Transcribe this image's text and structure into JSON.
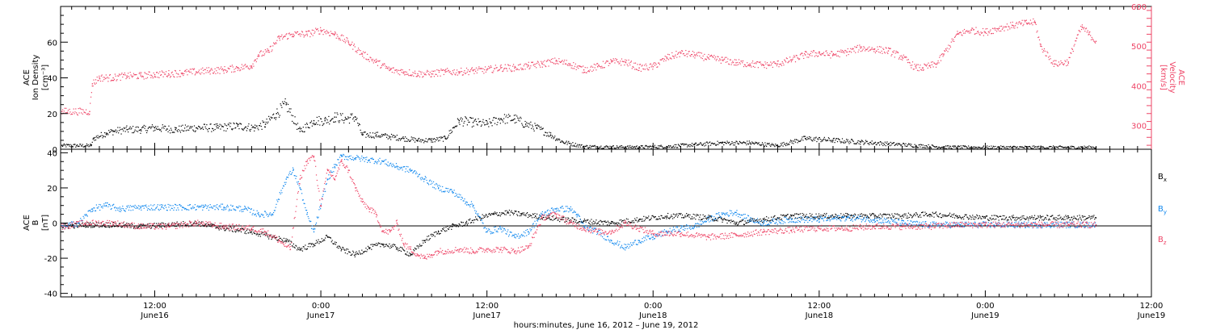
{
  "chart_data": [
    {
      "type": "scatter",
      "panel": "top",
      "y_left_label": [
        "ACE",
        "Ion Density",
        "[cm⁻³]"
      ],
      "y_right_label": [
        "ACE",
        "Velocity",
        "[km/s]"
      ],
      "x_tick_labels": [
        {
          "time": "12:00",
          "date": "June16"
        },
        {
          "time": "0:00",
          "date": "June17"
        },
        {
          "time": "12:00",
          "date": "June17"
        },
        {
          "time": "0:00",
          "date": "June18"
        },
        {
          "time": "12:00",
          "date": "June18"
        },
        {
          "time": "0:00",
          "date": "June19"
        },
        {
          "time": "12:00",
          "date": "June19"
        }
      ],
      "xlim_hours_since_june16_0000": [
        5.2,
        84.0
      ],
      "y_left_ticks": [
        "0",
        "20",
        "40",
        "60"
      ],
      "ylim_left": [
        0,
        80
      ],
      "y_right_ticks": [
        "300",
        "400",
        "500",
        "600"
      ],
      "ylim_right": [
        240,
        600
      ],
      "series": [
        {
          "name": "Ion Density",
          "axis": "left",
          "color": "#000000",
          "x": [
            5.3,
            7.4,
            7.6,
            8.5,
            9.0,
            10.0,
            11.0,
            12.0,
            13.5,
            15.0,
            16.5,
            18.0,
            19.2,
            20.0,
            20.8,
            21.5,
            22.5,
            23.5,
            24.3,
            25.0,
            25.8,
            26.5,
            27.0,
            28.0,
            29.0,
            30.0,
            31.0,
            32.0,
            33.0,
            34.0,
            35.0,
            36.0,
            37.0,
            38.0,
            38.8,
            39.6,
            40.6,
            41.5,
            43.0,
            45.0,
            47.0,
            49.0,
            51.0,
            53.0,
            55.0,
            57.0,
            59.0,
            61.0,
            63.0,
            65.0,
            67.0,
            69.0,
            71.0,
            73.0,
            75.0,
            77.0,
            79.0,
            80.0
          ],
          "y": [
            2,
            2,
            6,
            9,
            10,
            11,
            11,
            12,
            11,
            12,
            12,
            13,
            12,
            14,
            20,
            25,
            10,
            16,
            16,
            18,
            17,
            18,
            8,
            8,
            7,
            6,
            5,
            5,
            6,
            16,
            15,
            14,
            17,
            17,
            14,
            12,
            8,
            4,
            1.5,
            1.2,
            1.2,
            1.5,
            2.5,
            3.5,
            3.5,
            2,
            6,
            5,
            4,
            3,
            2,
            1.2,
            1,
            1,
            1,
            1,
            1,
            1
          ]
        },
        {
          "name": "Velocity",
          "axis": "right",
          "color": "#ee4466",
          "x": [
            5.3,
            7.3,
            7.5,
            8.0,
            9.0,
            10.0,
            11.0,
            12.0,
            13.0,
            14.0,
            15.0,
            16.0,
            17.0,
            18.0,
            19.0,
            19.5,
            20.2,
            21.0,
            22.0,
            23.0,
            24.0,
            25.0,
            26.0,
            27.0,
            28.0,
            29.0,
            30.0,
            31.0,
            32.0,
            33.0,
            34.0,
            35.0,
            36.0,
            37.0,
            38.0,
            39.0,
            40.0,
            41.0,
            42.0,
            43.0,
            44.0,
            45.0,
            46.0,
            47.0,
            48.0,
            49.0,
            50.0,
            51.0,
            52.0,
            53.0,
            54.0,
            55.0,
            56.0,
            57.0,
            58.0,
            59.0,
            60.0,
            61.0,
            62.0,
            63.0,
            64.0,
            65.0,
            66.0,
            67.0,
            67.5,
            68.0,
            68.5,
            69.0,
            70.0,
            71.0,
            72.0,
            73.0,
            74.0,
            75.0,
            75.6,
            76.0,
            77.0,
            78.0,
            78.6,
            79.0,
            79.5,
            80.0
          ],
          "y": [
            335,
            335,
            405,
            420,
            420,
            425,
            425,
            428,
            430,
            432,
            435,
            438,
            440,
            445,
            450,
            478,
            485,
            520,
            530,
            530,
            540,
            530,
            510,
            480,
            460,
            440,
            435,
            430,
            430,
            435,
            435,
            438,
            440,
            445,
            445,
            450,
            455,
            462,
            455,
            440,
            448,
            460,
            460,
            445,
            448,
            470,
            482,
            478,
            470,
            465,
            458,
            455,
            452,
            455,
            465,
            478,
            482,
            478,
            485,
            495,
            492,
            488,
            472,
            445,
            445,
            450,
            455,
            480,
            530,
            540,
            535,
            545,
            552,
            558,
            560,
            500,
            455,
            460,
            520,
            548,
            530,
            512
          ]
        }
      ]
    },
    {
      "type": "scatter",
      "panel": "bottom",
      "y_label": [
        "ACE",
        "B",
        "[nT]"
      ],
      "x_tick_labels": [
        {
          "time": "12:00",
          "date": "June16"
        },
        {
          "time": "0:00",
          "date": "June17"
        },
        {
          "time": "12:00",
          "date": "June17"
        },
        {
          "time": "0:00",
          "date": "June18"
        },
        {
          "time": "12:00",
          "date": "June18"
        },
        {
          "time": "0:00",
          "date": "June19"
        },
        {
          "time": "12:00",
          "date": "June19"
        }
      ],
      "xlim_hours_since_june16_0000": [
        5.2,
        84.0
      ],
      "y_ticks": [
        "-40",
        "-20",
        "0",
        "20",
        "40"
      ],
      "ylim": [
        -42,
        42
      ],
      "zero_line": true,
      "legend": [
        {
          "label": "B",
          "sub": "x",
          "color": "#000000"
        },
        {
          "label": "B",
          "sub": "y",
          "color": "#1188ee"
        },
        {
          "label": "B",
          "sub": "z",
          "color": "#ee4466"
        }
      ],
      "series": [
        {
          "name": "Bx",
          "color": "#000000",
          "x": [
            5.3,
            7.0,
            9.0,
            11.0,
            13.0,
            15.0,
            17.0,
            19.0,
            20.5,
            21.5,
            22.5,
            23.5,
            24.5,
            25.5,
            26.5,
            27.5,
            28.5,
            29.5,
            30.5,
            31.5,
            32.5,
            33.5,
            34.5,
            35.5,
            36.5,
            37.5,
            38.5,
            39.5,
            40.5,
            41.5,
            43.0,
            45.0,
            47.0,
            49.0,
            50.5,
            52.0,
            53.0,
            54.0,
            55.0,
            56.0,
            57.0,
            58.0,
            60.0,
            62.0,
            64.0,
            66.0,
            68.0,
            70.0,
            72.0,
            74.0,
            76.0,
            78.0,
            80.0
          ],
          "y": [
            -2,
            -1,
            -1,
            -2,
            -1,
            0,
            -3,
            -5,
            -8,
            -10,
            -15,
            -12,
            -8,
            -15,
            -18,
            -14,
            -12,
            -14,
            -18,
            -10,
            -5,
            -2,
            0,
            3,
            5,
            6,
            5,
            4,
            3,
            2,
            1,
            0,
            2,
            4,
            4,
            3,
            2,
            0,
            1,
            2,
            3,
            4,
            4,
            4,
            4,
            4,
            5,
            4,
            3,
            3,
            3,
            3,
            3
          ]
        },
        {
          "name": "By",
          "color": "#1188ee",
          "x": [
            5.3,
            6.5,
            7.5,
            8.5,
            9.5,
            11.0,
            12.5,
            14.0,
            15.5,
            17.0,
            18.5,
            19.5,
            20.5,
            21.5,
            22.0,
            22.5,
            23.0,
            23.5,
            24.0,
            24.5,
            25.0,
            25.5,
            26.5,
            27.5,
            28.5,
            29.5,
            30.5,
            31.5,
            32.5,
            33.5,
            34.5,
            35.0,
            36.0,
            37.0,
            38.0,
            39.0,
            40.0,
            41.0,
            42.0,
            42.5,
            43.0,
            44.0,
            45.0,
            46.0,
            47.0,
            48.0,
            49.0,
            50.0,
            51.0,
            52.0,
            53.0,
            54.0,
            55.0,
            56.0,
            58.0,
            60.0,
            62.0,
            64.0,
            66.0,
            68.0,
            70.0,
            72.0,
            74.0,
            76.0,
            78.0,
            80.0
          ],
          "y": [
            -2,
            0,
            8,
            10,
            8,
            9,
            9,
            9,
            9,
            9,
            8,
            5,
            5,
            25,
            30,
            20,
            5,
            -5,
            10,
            25,
            32,
            38,
            37,
            36,
            35,
            32,
            30,
            25,
            20,
            18,
            12,
            10,
            -5,
            -3,
            -8,
            -5,
            5,
            8,
            8,
            5,
            -2,
            -5,
            -10,
            -14,
            -10,
            -8,
            -5,
            -3,
            -2,
            2,
            5,
            6,
            2,
            0,
            2,
            2,
            3,
            2,
            0,
            -1,
            -1,
            -1,
            -1,
            -1,
            -1,
            -1
          ]
        },
        {
          "name": "Bz",
          "color": "#ee4466",
          "x": [
            5.3,
            7.0,
            9.0,
            11.0,
            13.0,
            15.0,
            17.0,
            19.0,
            20.0,
            21.0,
            21.8,
            22.5,
            23.0,
            23.5,
            24.0,
            24.5,
            25.0,
            25.5,
            26.0,
            26.5,
            27.0,
            27.5,
            28.0,
            28.5,
            29.0,
            29.5,
            30.0,
            30.5,
            31.0,
            31.5,
            32.0,
            32.5,
            33.0,
            34.0,
            35.0,
            36.0,
            37.0,
            38.0,
            39.0,
            40.0,
            41.0,
            42.0,
            43.0,
            44.0,
            45.0,
            46.0,
            47.0,
            48.0,
            50.0,
            52.0,
            54.0,
            56.0,
            58.0,
            60.0,
            62.0,
            64.0,
            66.0,
            68.0,
            70.0,
            72.0,
            74.0,
            76.0,
            78.0,
            80.0
          ],
          "y": [
            -2,
            0,
            0,
            -2,
            -2,
            0,
            -2,
            -3,
            -5,
            -10,
            -15,
            25,
            35,
            38,
            10,
            30,
            25,
            35,
            30,
            20,
            12,
            8,
            5,
            -5,
            -5,
            0,
            -12,
            -15,
            -18,
            -20,
            -18,
            -16,
            -16,
            -15,
            -16,
            -15,
            -15,
            -16,
            -14,
            3,
            5,
            0,
            -3,
            -5,
            -5,
            0,
            -3,
            -6,
            -6,
            -8,
            -7,
            -5,
            -4,
            -3,
            -3,
            -2,
            -2,
            -2,
            -1,
            -1,
            -1,
            -1,
            -1,
            -1
          ]
        }
      ]
    }
  ],
  "x_title": "hours:minutes, June 16, 2012 – June 19, 2012"
}
